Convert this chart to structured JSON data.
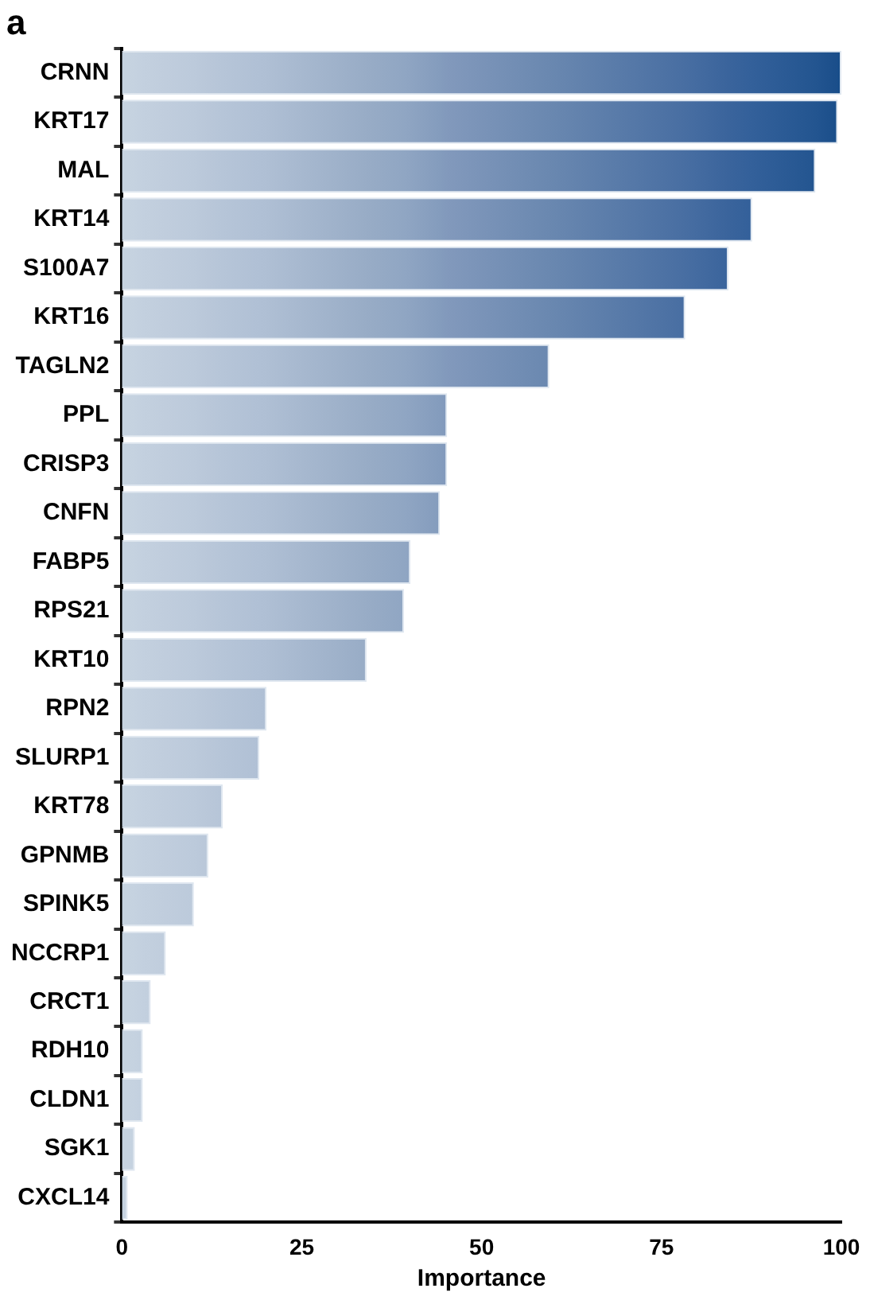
{
  "chart_data": {
    "type": "bar",
    "orientation": "horizontal",
    "title": "a",
    "xlabel": "Importance",
    "categories": [
      "CRNN",
      "KRT17",
      "MAL",
      "KRT14",
      "S100A7",
      "KRT16",
      "TAGLN2",
      "PPL",
      "CRISP3",
      "CNFN",
      "FABP5",
      "RPS21",
      "KRT10",
      "RPN2",
      "SLURP1",
      "KRT78",
      "GPNMB",
      "SPINK5",
      "NCCRP1",
      "CRCT1",
      "RDH10",
      "CLDN1",
      "SGK1",
      "CXCL14"
    ],
    "values": [
      100,
      99.5,
      96.4,
      87.6,
      84.3,
      78.3,
      59.4,
      45.2,
      45.2,
      44.2,
      40.1,
      39.2,
      34,
      20.1,
      19.1,
      14,
      12,
      10,
      6.1,
      4,
      2.9,
      2.9,
      1.8,
      0.8
    ],
    "colors": [
      "#0f4a88",
      "#1a4e8a",
      "#235590",
      "#33609a",
      "#3a649c",
      "#486ea2",
      "#6a88b0",
      "#8299bc",
      "#8299bc",
      "#849cbd",
      "#8ea4c2",
      "#90a6c3",
      "#98acc6",
      "#afbfd4",
      "#b0c0d5",
      "#b6c5d8",
      "#b9c7d9",
      "#bccadb",
      "#c0cddd",
      "#c2cfde",
      "#c3d0df",
      "#c3d0df",
      "#c5d2e0",
      "#c6d3e0"
    ],
    "xlim": [
      0,
      100
    ],
    "xticks": [
      0,
      25,
      50,
      75,
      100
    ],
    "grid": false,
    "legend": false
  }
}
